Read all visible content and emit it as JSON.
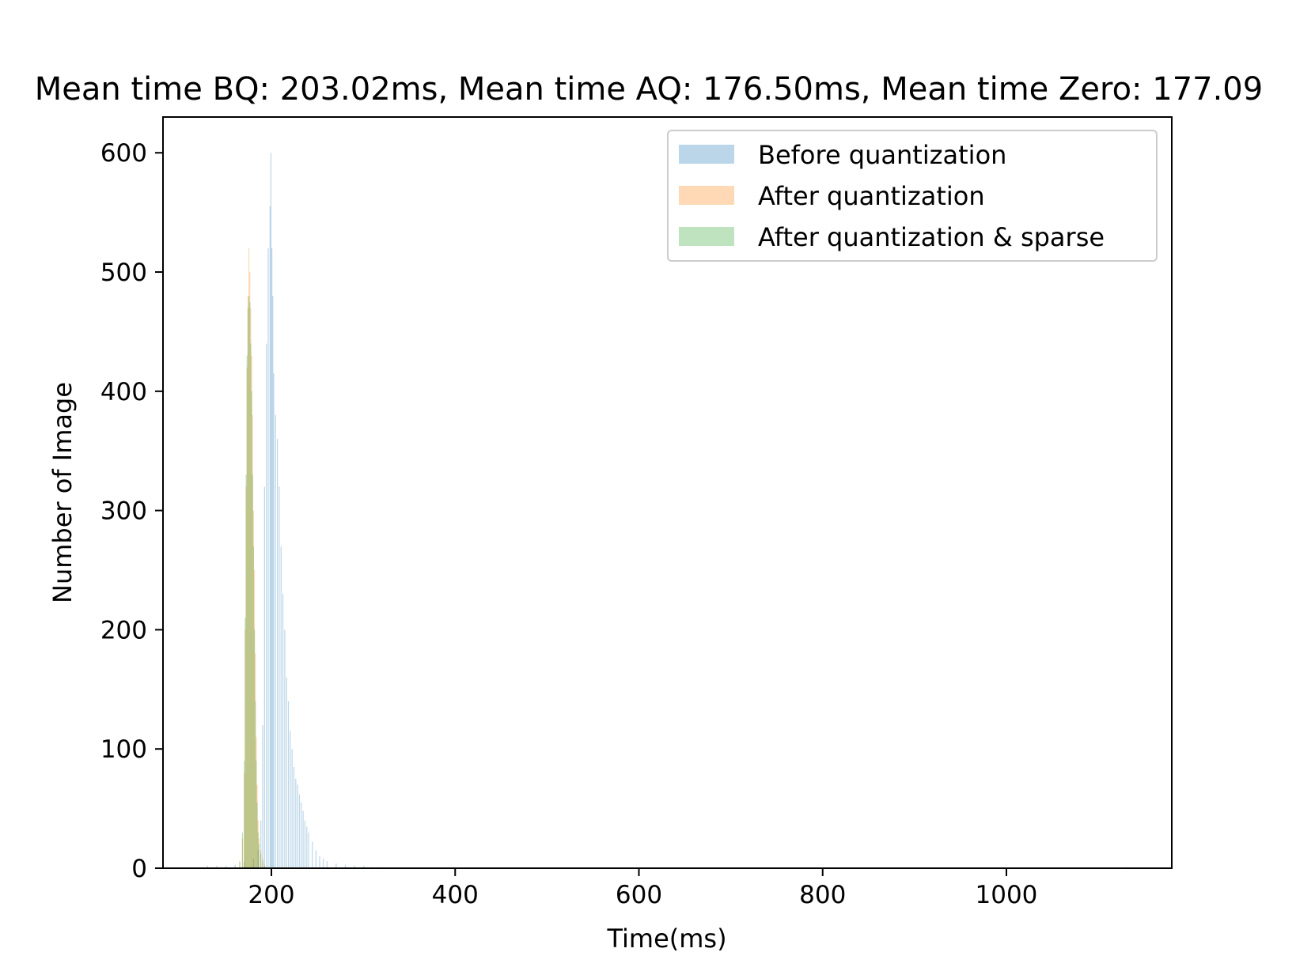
{
  "chart_data": {
    "type": "bar",
    "subtype": "histogram",
    "title": "Mean time BQ: 203.02ms, Mean time AQ: 176.50ms, Mean time Zero: 177.09",
    "xlabel": "Time(ms)",
    "ylabel": "Number of Image",
    "xlim": [
      82,
      1180
    ],
    "ylim": [
      0,
      630
    ],
    "xticks": [
      200,
      400,
      600,
      800,
      1000
    ],
    "yticks": [
      0,
      100,
      200,
      300,
      400,
      500,
      600
    ],
    "grid": false,
    "legend": "top-right",
    "bin_width": 1,
    "series": [
      {
        "name": "Before quantization",
        "color": "#1f77b4",
        "opacity": 0.3,
        "x": [
          130,
          140,
          150,
          160,
          170,
          180,
          185,
          188,
          190,
          192,
          194,
          196,
          198,
          199,
          200,
          201,
          202,
          204,
          206,
          208,
          210,
          212,
          214,
          216,
          218,
          220,
          222,
          224,
          226,
          228,
          230,
          232,
          234,
          236,
          238,
          240,
          244,
          248,
          252,
          256,
          260,
          270,
          280,
          290,
          300,
          310,
          320,
          1130
        ],
        "values": [
          2,
          2,
          2,
          3,
          5,
          8,
          15,
          40,
          120,
          320,
          440,
          520,
          555,
          600,
          520,
          480,
          415,
          380,
          360,
          320,
          270,
          230,
          200,
          160,
          140,
          115,
          100,
          85,
          75,
          70,
          62,
          55,
          48,
          40,
          35,
          30,
          22,
          15,
          10,
          8,
          6,
          4,
          3,
          2,
          2,
          1,
          1,
          1
        ]
      },
      {
        "name": "After quantization",
        "color": "#ff7f0e",
        "opacity": 0.3,
        "x": [
          160,
          165,
          168,
          170,
          171,
          172,
          173,
          174,
          175,
          176,
          177,
          178,
          179,
          180,
          181,
          182,
          183,
          184,
          185,
          186,
          188,
          190,
          192,
          195
        ],
        "values": [
          1,
          5,
          25,
          80,
          200,
          320,
          420,
          480,
          520,
          500,
          470,
          430,
          380,
          300,
          250,
          180,
          110,
          70,
          40,
          25,
          15,
          8,
          3,
          1
        ]
      },
      {
        "name": "After quantization & sparse",
        "color": "#2ca02c",
        "opacity": 0.3,
        "x": [
          160,
          165,
          168,
          170,
          171,
          172,
          173,
          174,
          175,
          176,
          177,
          178,
          179,
          180,
          181,
          182,
          183,
          184,
          185,
          186,
          188,
          190,
          192,
          195
        ],
        "values": [
          1,
          6,
          30,
          90,
          210,
          330,
          430,
          470,
          480,
          475,
          440,
          400,
          330,
          270,
          200,
          140,
          90,
          55,
          30,
          20,
          12,
          6,
          2,
          1
        ]
      }
    ]
  }
}
